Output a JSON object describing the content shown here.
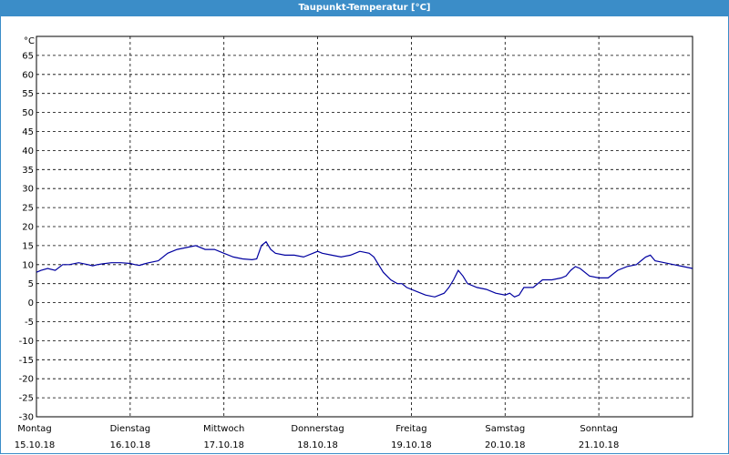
{
  "header": {
    "title": "Taupunkt-Temperatur [°C]"
  },
  "colors": {
    "title_bar": "#3b8dc8",
    "line": "#0000a0",
    "grid": "#000000"
  },
  "chart_data": {
    "type": "line",
    "title": "Taupunkt-Temperatur [°C]",
    "ylabel": "°C",
    "ylim": [
      -30,
      70
    ],
    "yticks": [
      65,
      60,
      55,
      50,
      45,
      40,
      35,
      30,
      25,
      20,
      15,
      10,
      5,
      0,
      -5,
      -10,
      -15,
      -20,
      -25,
      -30
    ],
    "xlim": [
      0,
      7
    ],
    "x_ticks": [
      {
        "day": "Montag",
        "date": "15.10.18"
      },
      {
        "day": "Dienstag",
        "date": "16.10.18"
      },
      {
        "day": "Mittwoch",
        "date": "17.10.18"
      },
      {
        "day": "Donnerstag",
        "date": "18.10.18"
      },
      {
        "day": "Freitag",
        "date": "19.10.18"
      },
      {
        "day": "Samstag",
        "date": "20.10.18"
      },
      {
        "day": "Sonntag",
        "date": "21.10.18"
      }
    ],
    "grid": true,
    "series": [
      {
        "x": [
          0,
          0.05,
          0.12,
          0.2,
          0.28,
          0.35,
          0.45,
          0.55,
          0.6,
          0.65,
          0.7,
          0.8,
          0.9,
          1.0,
          1.05,
          1.1,
          1.15,
          1.2,
          1.3,
          1.4,
          1.5,
          1.6,
          1.7,
          1.8,
          1.9,
          2.0,
          2.1,
          2.2,
          2.3,
          2.35,
          2.4,
          2.45,
          2.5,
          2.55,
          2.65,
          2.75,
          2.85,
          2.95,
          3.0,
          3.05,
          3.15,
          3.25,
          3.35,
          3.45,
          3.55,
          3.6,
          3.65,
          3.7,
          3.78,
          3.85,
          3.9,
          3.95,
          4.05,
          4.15,
          4.25,
          4.35,
          4.4,
          4.45,
          4.5,
          4.55,
          4.6,
          4.7,
          4.8,
          4.9,
          5.0,
          5.05,
          5.1,
          5.15,
          5.2,
          5.25,
          5.3,
          5.4,
          5.5,
          5.6,
          5.65,
          5.7,
          5.75,
          5.8,
          5.9,
          6.0,
          6.05,
          6.1,
          6.2,
          6.3,
          6.4,
          6.45,
          6.5,
          6.55,
          6.6,
          6.7,
          6.8,
          6.9,
          7.0
        ],
        "values": [
          8,
          8.5,
          9,
          8.5,
          10,
          10,
          10.5,
          10,
          9.7,
          10,
          10.2,
          10.5,
          10.5,
          10.3,
          10,
          9.8,
          10.2,
          10.5,
          11,
          13,
          14,
          14.5,
          15,
          14,
          14,
          13,
          12,
          11.5,
          11.3,
          11.5,
          15,
          16,
          14,
          13,
          12.5,
          12.5,
          12,
          13,
          13.5,
          13,
          12.5,
          12,
          12.5,
          13.5,
          13,
          12,
          10,
          8,
          6,
          5,
          5,
          4,
          3,
          2,
          1.5,
          2.5,
          4,
          6,
          8.5,
          7,
          5,
          4,
          3.5,
          2.5,
          2,
          2.5,
          1.5,
          2,
          4,
          4,
          4,
          6,
          6,
          6.5,
          7,
          8.5,
          9.5,
          9,
          7,
          6.5,
          6.5,
          6.5,
          8.5,
          9.5,
          10,
          11,
          12,
          12.5,
          11,
          10.5,
          10,
          9.5,
          9
        ]
      }
    ]
  }
}
